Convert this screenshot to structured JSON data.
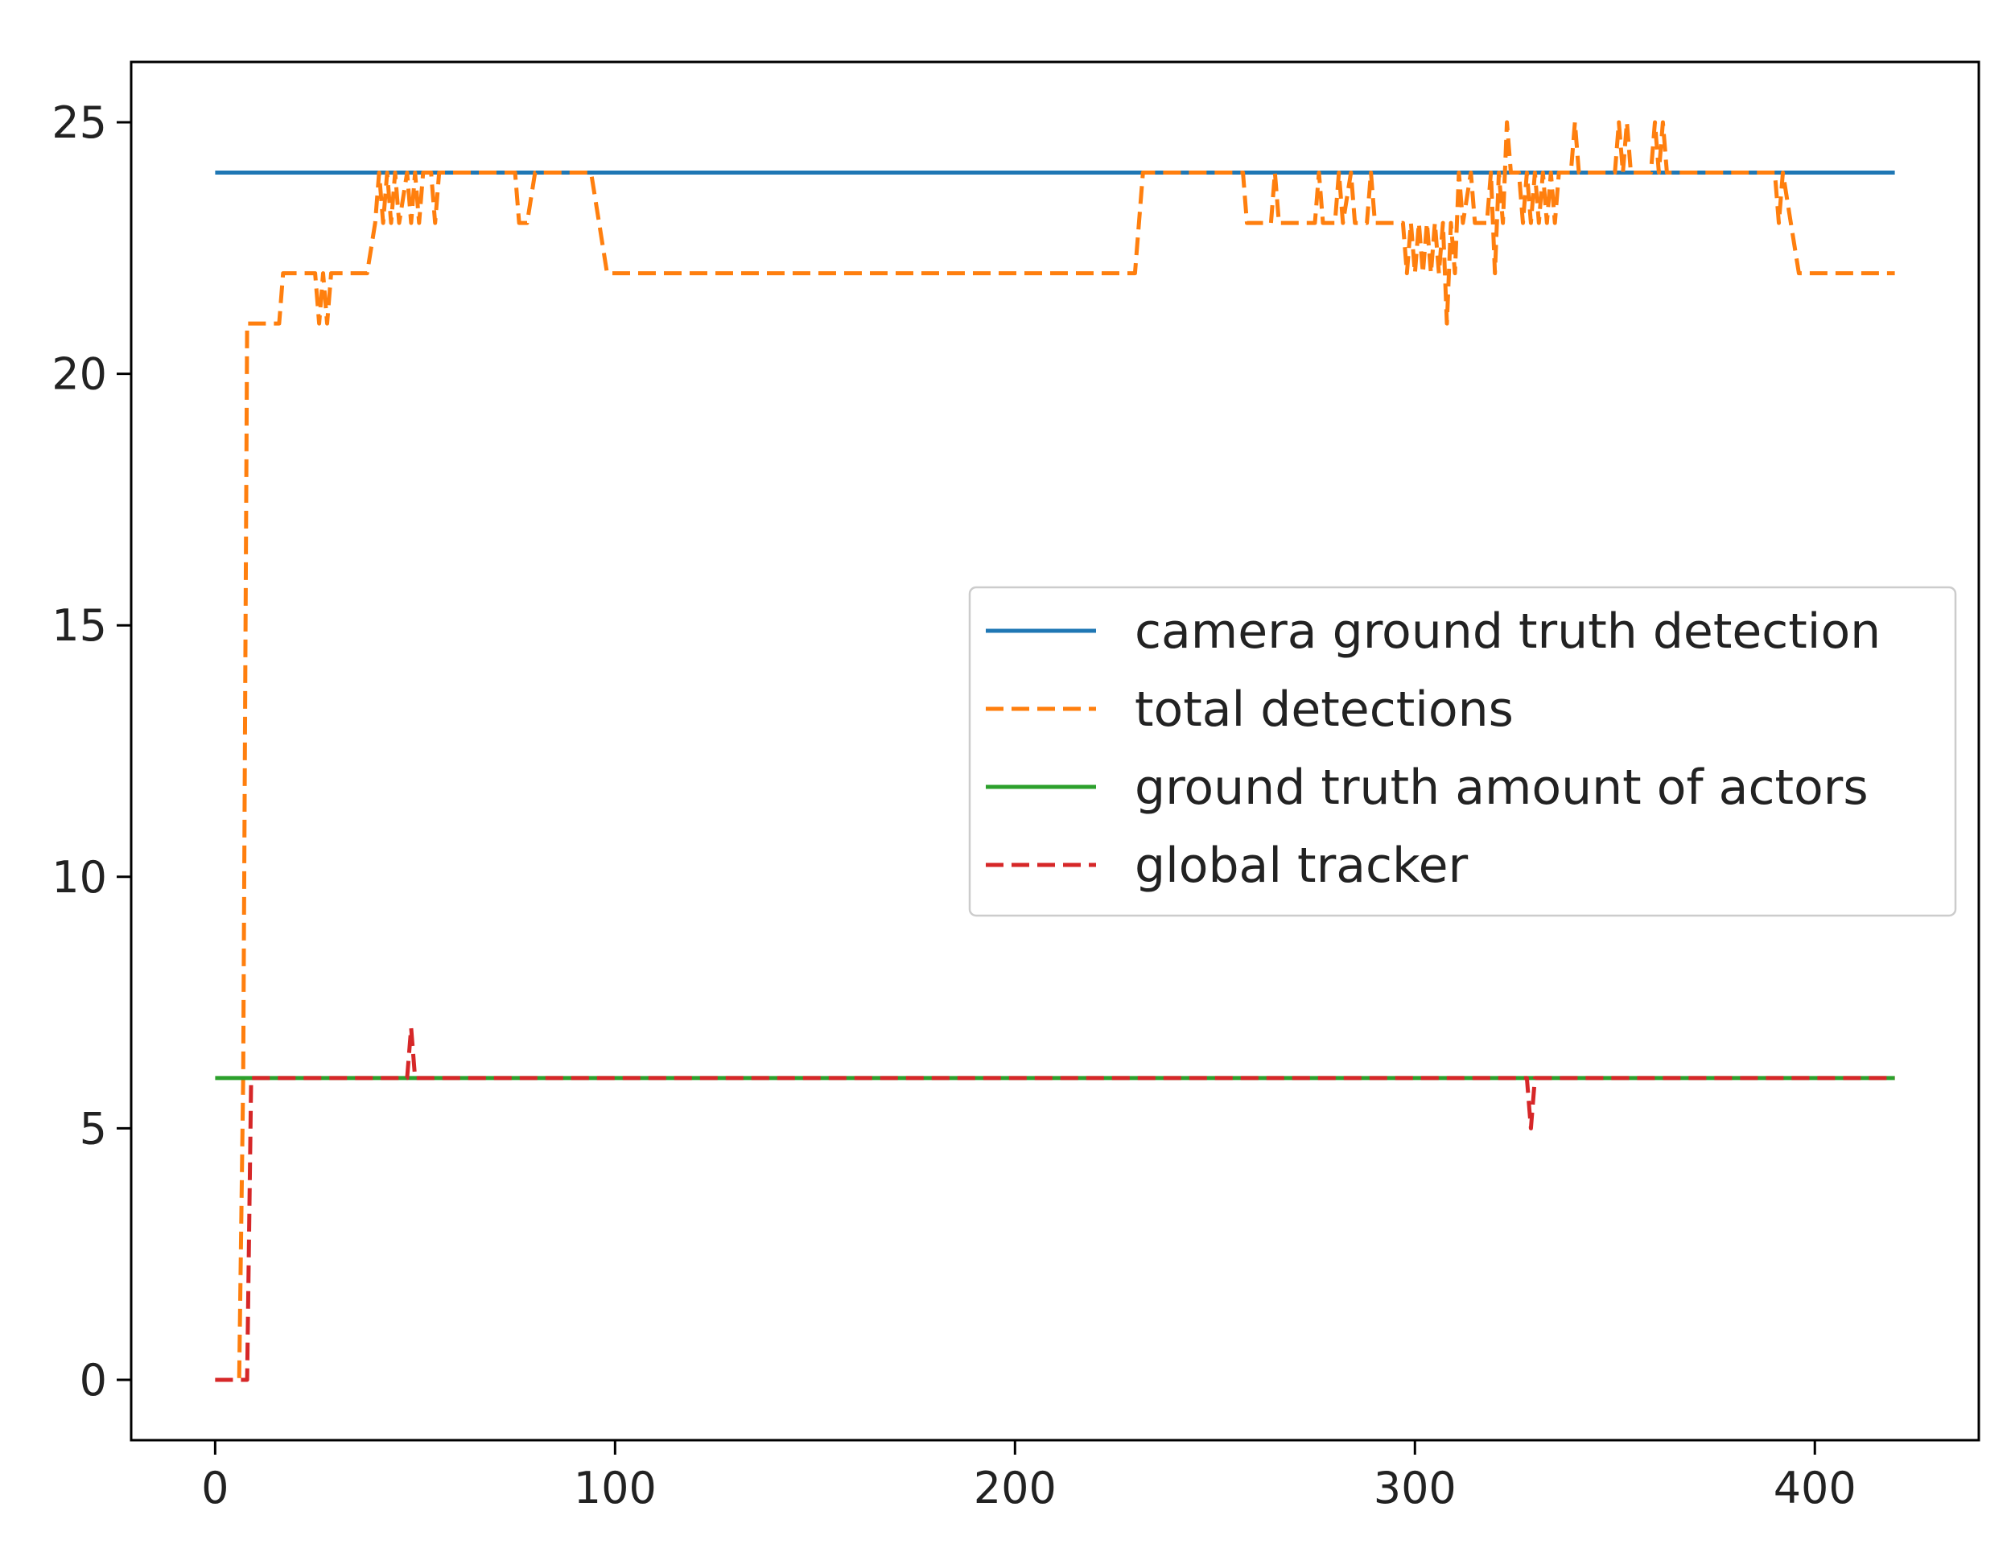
{
  "chart_data": {
    "type": "line",
    "title": "",
    "xlabel": "",
    "ylabel": "",
    "xlim": [
      -21,
      441
    ],
    "ylim": [
      -1.2,
      26.2
    ],
    "xticks": [
      0,
      100,
      200,
      300,
      400
    ],
    "yticks": [
      0,
      5,
      10,
      15,
      20,
      25
    ],
    "grid": false,
    "legend": {
      "position": "center-right",
      "entries": [
        "camera ground truth detection",
        "total detections",
        "ground truth amount of actors",
        "global tracker"
      ]
    },
    "series": [
      {
        "name": "camera ground truth detection",
        "color": "#1f77b4",
        "style": "solid",
        "points": [
          [
            0,
            24
          ],
          [
            420,
            24
          ]
        ]
      },
      {
        "name": "total detections",
        "color": "#ff7f0e",
        "style": "dashed",
        "points": [
          [
            0,
            0
          ],
          [
            6,
            0
          ],
          [
            7,
            6
          ],
          [
            8,
            21
          ],
          [
            16,
            21
          ],
          [
            17,
            22
          ],
          [
            25,
            22
          ],
          [
            26,
            21
          ],
          [
            27,
            22
          ],
          [
            28,
            21
          ],
          [
            29,
            22
          ],
          [
            38,
            22
          ],
          [
            40,
            23
          ],
          [
            41,
            24
          ],
          [
            42,
            23
          ],
          [
            43,
            24
          ],
          [
            44,
            23
          ],
          [
            45,
            24
          ],
          [
            46,
            23
          ],
          [
            48,
            24
          ],
          [
            49,
            23
          ],
          [
            50,
            24
          ],
          [
            51,
            23
          ],
          [
            52,
            24
          ],
          [
            54,
            24
          ],
          [
            55,
            23
          ],
          [
            56,
            24
          ],
          [
            75,
            24
          ],
          [
            76,
            23
          ],
          [
            78,
            23
          ],
          [
            80,
            24
          ],
          [
            94,
            24
          ],
          [
            96,
            23
          ],
          [
            98,
            22
          ],
          [
            230,
            22
          ],
          [
            232,
            24
          ],
          [
            257,
            24
          ],
          [
            258,
            23
          ],
          [
            264,
            23
          ],
          [
            265,
            24
          ],
          [
            266,
            23
          ],
          [
            275,
            23
          ],
          [
            276,
            24
          ],
          [
            277,
            23
          ],
          [
            280,
            23
          ],
          [
            281,
            24
          ],
          [
            282,
            23
          ],
          [
            284,
            24
          ],
          [
            285,
            23
          ],
          [
            288,
            23
          ],
          [
            289,
            24
          ],
          [
            290,
            23
          ],
          [
            297,
            23
          ],
          [
            298,
            22
          ],
          [
            299,
            23
          ],
          [
            300,
            22
          ],
          [
            301,
            23
          ],
          [
            302,
            22
          ],
          [
            303,
            23
          ],
          [
            304,
            22
          ],
          [
            305,
            23
          ],
          [
            306,
            22
          ],
          [
            307,
            23
          ],
          [
            308,
            21
          ],
          [
            309,
            23
          ],
          [
            310,
            22
          ],
          [
            311,
            24
          ],
          [
            312,
            23
          ],
          [
            314,
            24
          ],
          [
            315,
            23
          ],
          [
            318,
            23
          ],
          [
            319,
            24
          ],
          [
            320,
            22
          ],
          [
            321,
            24
          ],
          [
            322,
            23
          ],
          [
            323,
            25
          ],
          [
            324,
            24
          ],
          [
            326,
            24
          ],
          [
            327,
            23
          ],
          [
            328,
            24
          ],
          [
            329,
            23
          ],
          [
            330,
            24
          ],
          [
            331,
            23
          ],
          [
            332,
            24
          ],
          [
            333,
            23
          ],
          [
            334,
            24
          ],
          [
            335,
            23
          ],
          [
            336,
            24
          ],
          [
            339,
            24
          ],
          [
            340,
            25
          ],
          [
            341,
            24
          ],
          [
            350,
            24
          ],
          [
            351,
            25
          ],
          [
            352,
            24
          ],
          [
            353,
            25
          ],
          [
            354,
            24
          ],
          [
            359,
            24
          ],
          [
            360,
            25
          ],
          [
            361,
            24
          ],
          [
            362,
            25
          ],
          [
            363,
            24
          ],
          [
            390,
            24
          ],
          [
            391,
            23
          ],
          [
            392,
            24
          ],
          [
            394,
            23
          ],
          [
            396,
            22
          ],
          [
            420,
            22
          ]
        ]
      },
      {
        "name": "ground truth amount of actors",
        "color": "#2ca02c",
        "style": "solid",
        "points": [
          [
            0,
            6
          ],
          [
            420,
            6
          ]
        ]
      },
      {
        "name": "global tracker",
        "color": "#d62728",
        "style": "dashed",
        "points": [
          [
            0,
            0
          ],
          [
            8,
            0
          ],
          [
            9,
            6
          ],
          [
            48,
            6
          ],
          [
            49,
            7
          ],
          [
            50,
            6
          ],
          [
            328,
            6
          ],
          [
            329,
            5
          ],
          [
            330,
            6
          ],
          [
            420,
            6
          ]
        ]
      }
    ]
  }
}
